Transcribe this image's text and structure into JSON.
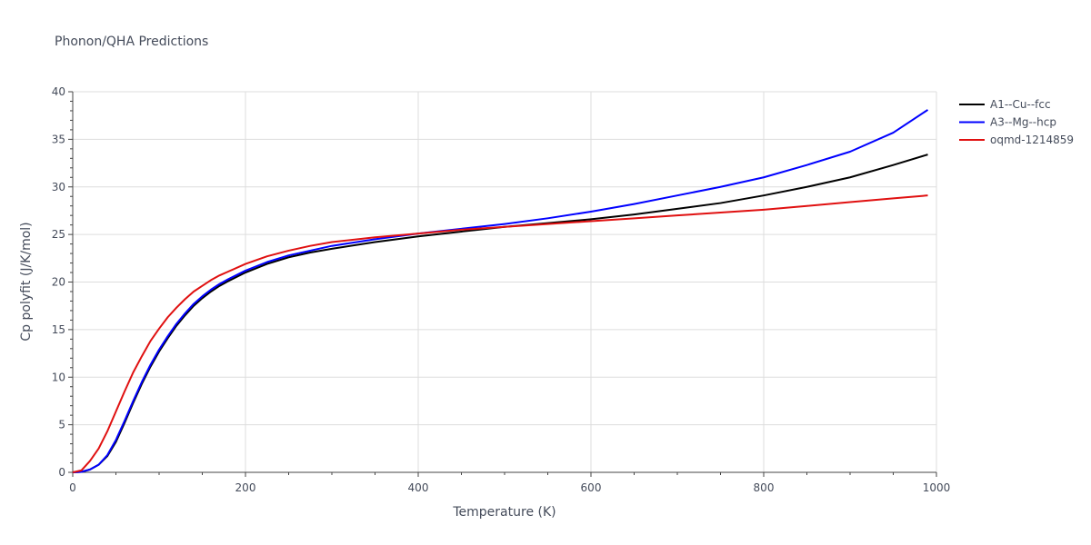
{
  "chart_data": {
    "type": "line",
    "title": "Phonon/QHA Predictions",
    "xlabel": "Temperature (K)",
    "ylabel": "Cp polyfit (J/K/mol)",
    "xlim": [
      0,
      1000
    ],
    "ylim": [
      0,
      40
    ],
    "xticks": [
      0,
      200,
      400,
      600,
      800,
      1000
    ],
    "yticks": [
      0,
      5,
      10,
      15,
      20,
      25,
      30,
      35,
      40
    ],
    "xtick_labels": [
      "0",
      "200",
      "400",
      "600",
      "800",
      "1000"
    ],
    "ytick_labels": [
      "0",
      "5",
      "10",
      "15",
      "20",
      "25",
      "30",
      "35",
      "40"
    ],
    "grid": true,
    "legend_position": "top-right",
    "series": [
      {
        "name": "A1--Cu--fcc",
        "color": "#000000",
        "x": [
          0,
          10,
          20,
          30,
          40,
          50,
          60,
          70,
          80,
          90,
          100,
          110,
          120,
          130,
          140,
          150,
          160,
          170,
          180,
          200,
          225,
          250,
          275,
          300,
          350,
          400,
          450,
          500,
          550,
          600,
          650,
          700,
          750,
          800,
          850,
          900,
          950,
          990
        ],
        "y": [
          0,
          0.05,
          0.3,
          0.8,
          1.7,
          3.2,
          5.2,
          7.3,
          9.3,
          11.1,
          12.7,
          14.1,
          15.4,
          16.5,
          17.5,
          18.3,
          19.0,
          19.6,
          20.1,
          21.0,
          21.9,
          22.6,
          23.1,
          23.5,
          24.2,
          24.8,
          25.3,
          25.8,
          26.2,
          26.6,
          27.1,
          27.7,
          28.3,
          29.1,
          30.0,
          31.0,
          32.3,
          33.4
        ]
      },
      {
        "name": "A3--Mg--hcp",
        "color": "#0000ff",
        "x": [
          0,
          10,
          20,
          30,
          40,
          50,
          60,
          70,
          80,
          90,
          100,
          110,
          120,
          130,
          140,
          150,
          160,
          170,
          180,
          200,
          225,
          250,
          275,
          300,
          350,
          400,
          450,
          500,
          550,
          600,
          650,
          700,
          750,
          800,
          850,
          900,
          950,
          990
        ],
        "y": [
          0,
          0.05,
          0.3,
          0.8,
          1.8,
          3.4,
          5.4,
          7.5,
          9.5,
          11.3,
          12.9,
          14.3,
          15.6,
          16.7,
          17.7,
          18.5,
          19.2,
          19.8,
          20.3,
          21.2,
          22.1,
          22.8,
          23.3,
          23.8,
          24.5,
          25.1,
          25.6,
          26.1,
          26.7,
          27.4,
          28.2,
          29.1,
          30.0,
          31.0,
          32.3,
          33.7,
          35.7,
          38.1
        ]
      },
      {
        "name": "oqmd-1214859",
        "color": "#e01010",
        "x": [
          0,
          10,
          20,
          30,
          40,
          50,
          60,
          70,
          80,
          90,
          100,
          110,
          120,
          130,
          140,
          150,
          160,
          170,
          180,
          200,
          225,
          250,
          275,
          300,
          350,
          400,
          450,
          500,
          550,
          600,
          650,
          700,
          750,
          800,
          850,
          900,
          950,
          990
        ],
        "y": [
          0,
          0.2,
          1.2,
          2.5,
          4.3,
          6.4,
          8.5,
          10.5,
          12.2,
          13.8,
          15.1,
          16.3,
          17.3,
          18.2,
          19.0,
          19.6,
          20.2,
          20.7,
          21.1,
          21.9,
          22.7,
          23.3,
          23.8,
          24.2,
          24.7,
          25.1,
          25.5,
          25.8,
          26.1,
          26.4,
          26.7,
          27.0,
          27.3,
          27.6,
          28.0,
          28.4,
          28.8,
          29.1
        ]
      }
    ]
  }
}
